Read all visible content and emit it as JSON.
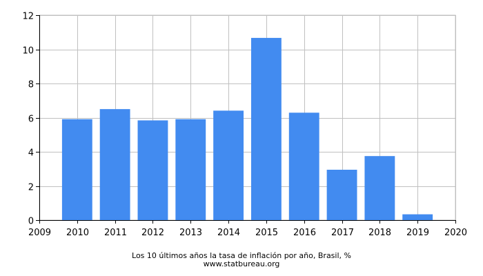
{
  "chart_data": {
    "type": "bar",
    "title": "Los 10 últimos años la tasa de inflación por año, Brasil, %",
    "source": "www.statbureau.org",
    "xlabel": "",
    "ylabel": "",
    "x_ticks": [
      "2009",
      "2010",
      "2011",
      "2012",
      "2013",
      "2014",
      "2015",
      "2016",
      "2017",
      "2018",
      "2019",
      "2020"
    ],
    "y_ticks": [
      "0",
      "2",
      "4",
      "6",
      "8",
      "10",
      "12"
    ],
    "xlim": [
      2009,
      2020
    ],
    "ylim": [
      0,
      12
    ],
    "grid": true,
    "bar_color": "#428bf0",
    "categories": [
      "2010",
      "2011",
      "2012",
      "2013",
      "2014",
      "2015",
      "2016",
      "2017",
      "2018",
      "2019"
    ],
    "values": [
      5.91,
      6.5,
      5.84,
      5.91,
      6.41,
      10.67,
      6.29,
      2.95,
      3.75,
      0.34
    ]
  }
}
